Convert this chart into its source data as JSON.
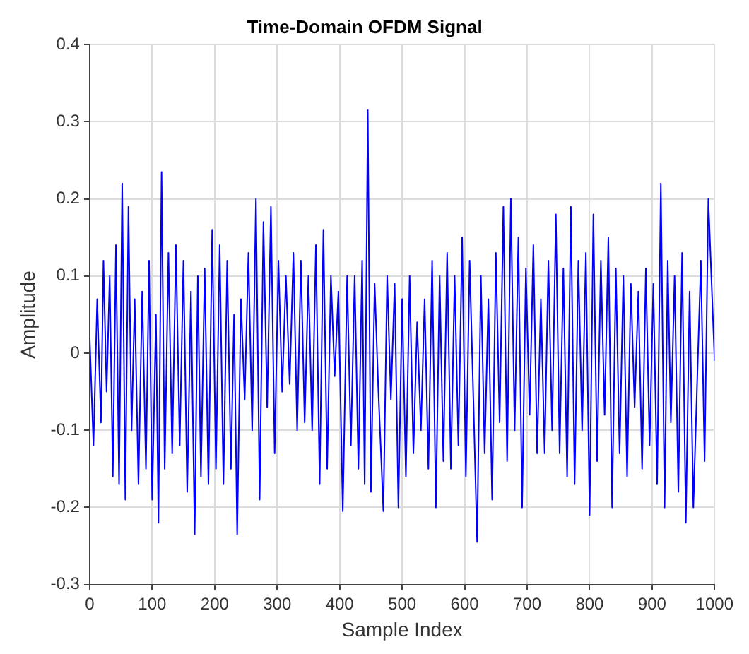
{
  "chart_data": {
    "type": "line",
    "title": "Time-Domain OFDM Signal",
    "xlabel": "Sample Index",
    "ylabel": "Amplitude",
    "x": [
      0,
      6,
      12,
      18,
      22,
      27,
      32,
      37,
      42,
      47,
      52,
      57,
      62,
      67,
      72,
      78,
      84,
      90,
      95,
      100,
      106,
      110,
      115,
      120,
      126,
      132,
      138,
      144,
      150,
      156,
      162,
      168,
      173,
      178,
      184,
      190,
      196,
      202,
      208,
      214,
      220,
      226,
      231,
      236,
      242,
      248,
      254,
      260,
      266,
      272,
      278,
      284,
      290,
      296,
      302,
      308,
      314,
      320,
      326,
      332,
      338,
      344,
      350,
      356,
      362,
      368,
      374,
      380,
      386,
      392,
      398,
      405,
      412,
      418,
      424,
      430,
      436,
      440,
      445,
      450,
      456,
      462,
      470,
      476,
      482,
      488,
      494,
      500,
      506,
      512,
      518,
      524,
      530,
      536,
      542,
      548,
      554,
      560,
      566,
      572,
      578,
      584,
      590,
      596,
      602,
      608,
      614,
      620,
      626,
      632,
      638,
      644,
      650,
      656,
      662,
      668,
      674,
      680,
      686,
      692,
      698,
      704,
      710,
      716,
      722,
      728,
      734,
      740,
      746,
      752,
      758,
      764,
      770,
      776,
      782,
      788,
      794,
      800,
      806,
      812,
      818,
      824,
      830,
      836,
      842,
      848,
      854,
      860,
      866,
      872,
      878,
      884,
      890,
      896,
      902,
      908,
      914,
      920,
      925,
      930,
      936,
      942,
      948,
      954,
      960,
      966,
      978,
      984,
      990,
      1000
    ],
    "series": [
      {
        "color": "#0000ff",
        "values": [
          0.02,
          -0.12,
          0.07,
          -0.09,
          0.12,
          -0.05,
          0.1,
          -0.16,
          0.14,
          -0.17,
          0.22,
          -0.19,
          0.19,
          -0.1,
          0.07,
          -0.17,
          0.08,
          -0.15,
          0.12,
          -0.19,
          0.05,
          -0.22,
          0.235,
          -0.15,
          0.13,
          -0.13,
          0.14,
          -0.12,
          0.12,
          -0.18,
          0.08,
          -0.235,
          0.1,
          -0.16,
          0.11,
          -0.17,
          0.16,
          -0.15,
          0.14,
          -0.17,
          0.12,
          -0.15,
          0.05,
          -0.235,
          0.07,
          -0.06,
          0.13,
          -0.1,
          0.2,
          -0.19,
          0.17,
          -0.07,
          0.19,
          -0.13,
          0.12,
          -0.05,
          0.1,
          -0.04,
          0.13,
          -0.1,
          0.12,
          -0.09,
          0.1,
          -0.1,
          0.14,
          -0.17,
          0.16,
          -0.15,
          0.1,
          -0.03,
          0.08,
          -0.205,
          0.1,
          -0.12,
          0.1,
          -0.15,
          0.12,
          -0.17,
          0.315,
          -0.18,
          0.09,
          -0.05,
          -0.205,
          0.1,
          -0.06,
          0.09,
          -0.2,
          0.07,
          -0.16,
          0.1,
          -0.13,
          0.04,
          -0.1,
          0.07,
          -0.15,
          0.12,
          -0.2,
          0.1,
          -0.14,
          0.13,
          -0.15,
          0.1,
          -0.12,
          0.15,
          -0.16,
          0.12,
          -0.06,
          -0.245,
          0.1,
          -0.13,
          0.07,
          -0.19,
          0.13,
          -0.09,
          0.19,
          -0.14,
          0.2,
          -0.1,
          0.15,
          -0.2,
          0.11,
          -0.08,
          0.14,
          -0.13,
          0.07,
          -0.13,
          0.12,
          -0.1,
          0.18,
          -0.13,
          0.11,
          -0.16,
          0.19,
          -0.17,
          0.12,
          -0.1,
          0.13,
          -0.21,
          0.18,
          -0.14,
          0.12,
          -0.08,
          0.15,
          -0.2,
          0.11,
          -0.13,
          0.1,
          -0.16,
          0.09,
          -0.07,
          0.08,
          -0.15,
          0.11,
          -0.12,
          0.09,
          -0.17,
          0.22,
          -0.2,
          0.12,
          -0.09,
          0.1,
          -0.18,
          0.13,
          -0.22,
          0.08,
          -0.2,
          0.12,
          -0.14,
          0.2,
          -0.01
        ]
      }
    ],
    "xlim": [
      0,
      1000
    ],
    "xticks": [
      0,
      100,
      200,
      300,
      400,
      500,
      600,
      700,
      800,
      900,
      1000
    ],
    "ylim": [
      -0.3,
      0.4
    ],
    "yticks": [
      -0.3,
      -0.2,
      -0.1,
      0,
      0.1,
      0.2,
      0.3,
      0.4
    ],
    "grid": true,
    "legend": false,
    "marker": "none",
    "line_style": "solid"
  }
}
